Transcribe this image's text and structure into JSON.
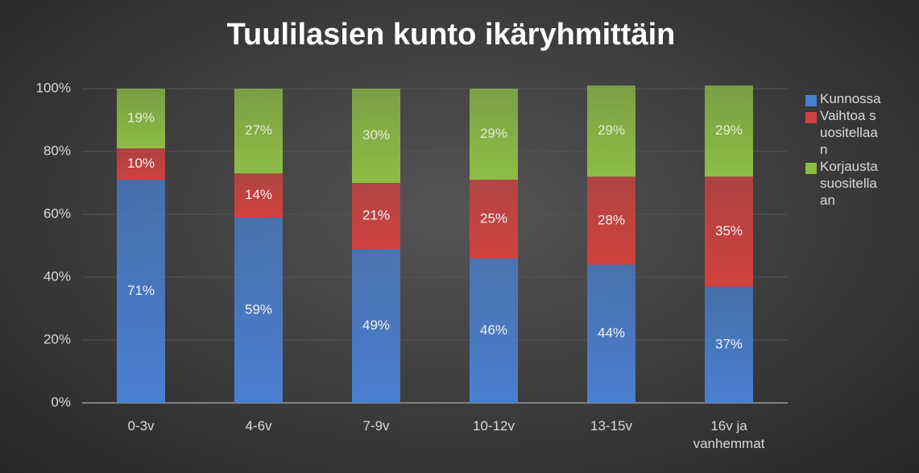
{
  "chart_data": {
    "type": "stacked_bar",
    "title": "Tuulilasien kunto ikäryhmittäin",
    "categories": [
      "0-3v",
      "4-6v",
      "7-9v",
      "10-12v",
      "13-15v",
      "16v ja vanhemmat"
    ],
    "series": [
      {
        "name": "Kunnossa",
        "color": "#4a7fd0",
        "values": [
          71,
          59,
          49,
          46,
          44,
          37
        ],
        "value_labels": [
          "71%",
          "59%",
          "49%",
          "46%",
          "44%",
          "37%"
        ]
      },
      {
        "name": "Vaihtoa suositellaan",
        "color": "#d0423f",
        "values": [
          10,
          14,
          21,
          25,
          28,
          35
        ],
        "value_labels": [
          "10%",
          "14%",
          "21%",
          "25%",
          "28%",
          "35%"
        ]
      },
      {
        "name": "Korjausta suositellaan",
        "color": "#8dbd45",
        "values": [
          19,
          27,
          30,
          29,
          29,
          29
        ],
        "value_labels": [
          "19%",
          "27%",
          "30%",
          "29%",
          "29%",
          "29%"
        ]
      }
    ],
    "ylim": [
      0,
      100
    ],
    "yticks": [
      {
        "value": 0,
        "label": "0%"
      },
      {
        "value": 20,
        "label": "20%"
      },
      {
        "value": 40,
        "label": "40%"
      },
      {
        "value": 60,
        "label": "60%"
      },
      {
        "value": 80,
        "label": "80%"
      },
      {
        "value": 100,
        "label": "100%"
      }
    ],
    "grid": true,
    "legend": "right"
  }
}
